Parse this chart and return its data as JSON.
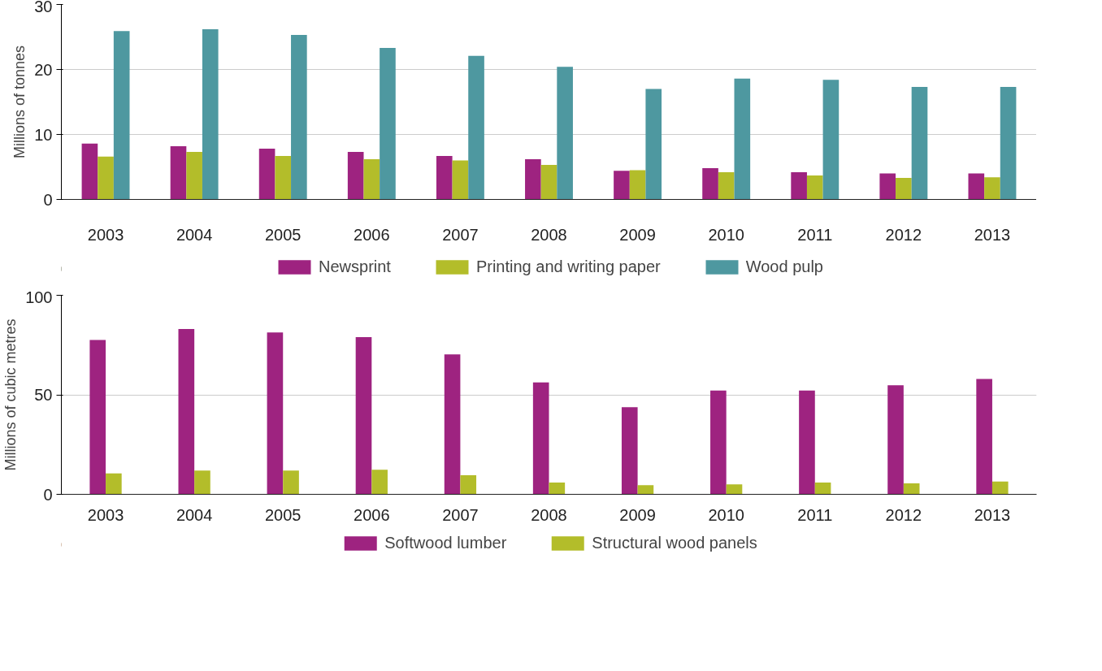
{
  "chart_data": [
    {
      "type": "bar",
      "ylabel": "Millions of tonnes",
      "categories": [
        "2003",
        "2004",
        "2005",
        "2006",
        "2007",
        "2008",
        "2009",
        "2010",
        "2011",
        "2012",
        "2013"
      ],
      "ylim": [
        0,
        30
      ],
      "yticks": [
        0,
        10,
        20,
        30
      ],
      "grid": "y",
      "legend": "bottom",
      "series": [
        {
          "name": "Newsprint",
          "color": "#9e2380",
          "values": [
            8.6,
            8.2,
            7.8,
            7.3,
            6.7,
            6.2,
            4.4,
            4.8,
            4.2,
            4.0,
            4.0
          ]
        },
        {
          "name": "Printing and writing paper",
          "color": "#b3bd2a",
          "values": [
            6.6,
            7.3,
            6.7,
            6.2,
            6.0,
            5.3,
            4.5,
            4.2,
            3.7,
            3.3,
            3.4
          ]
        },
        {
          "name": "Wood pulp",
          "color": "#4e98a0",
          "values": [
            25.9,
            26.2,
            25.3,
            23.3,
            22.1,
            20.4,
            17.0,
            18.6,
            18.4,
            17.3,
            17.3
          ]
        }
      ]
    },
    {
      "type": "bar",
      "ylabel": "Millions of cubic metres",
      "categories": [
        "2003",
        "2004",
        "2005",
        "2006",
        "2007",
        "2008",
        "2009",
        "2010",
        "2011",
        "2012",
        "2013"
      ],
      "ylim": [
        0,
        100
      ],
      "yticks": [
        0,
        50,
        100
      ],
      "grid": "y",
      "legend": "bottom",
      "series": [
        {
          "name": "Softwood lumber",
          "color": "#9e2380",
          "values": [
            77.6,
            83.1,
            81.3,
            79.0,
            70.3,
            56.2,
            43.8,
            52.1,
            52.1,
            54.8,
            58.0
          ]
        },
        {
          "name": "Structural wood panels",
          "color": "#b3bd2a",
          "values": [
            10.5,
            11.9,
            11.9,
            12.3,
            9.6,
            5.9,
            4.6,
            5.0,
            5.9,
            5.5,
            6.4
          ]
        }
      ]
    }
  ]
}
